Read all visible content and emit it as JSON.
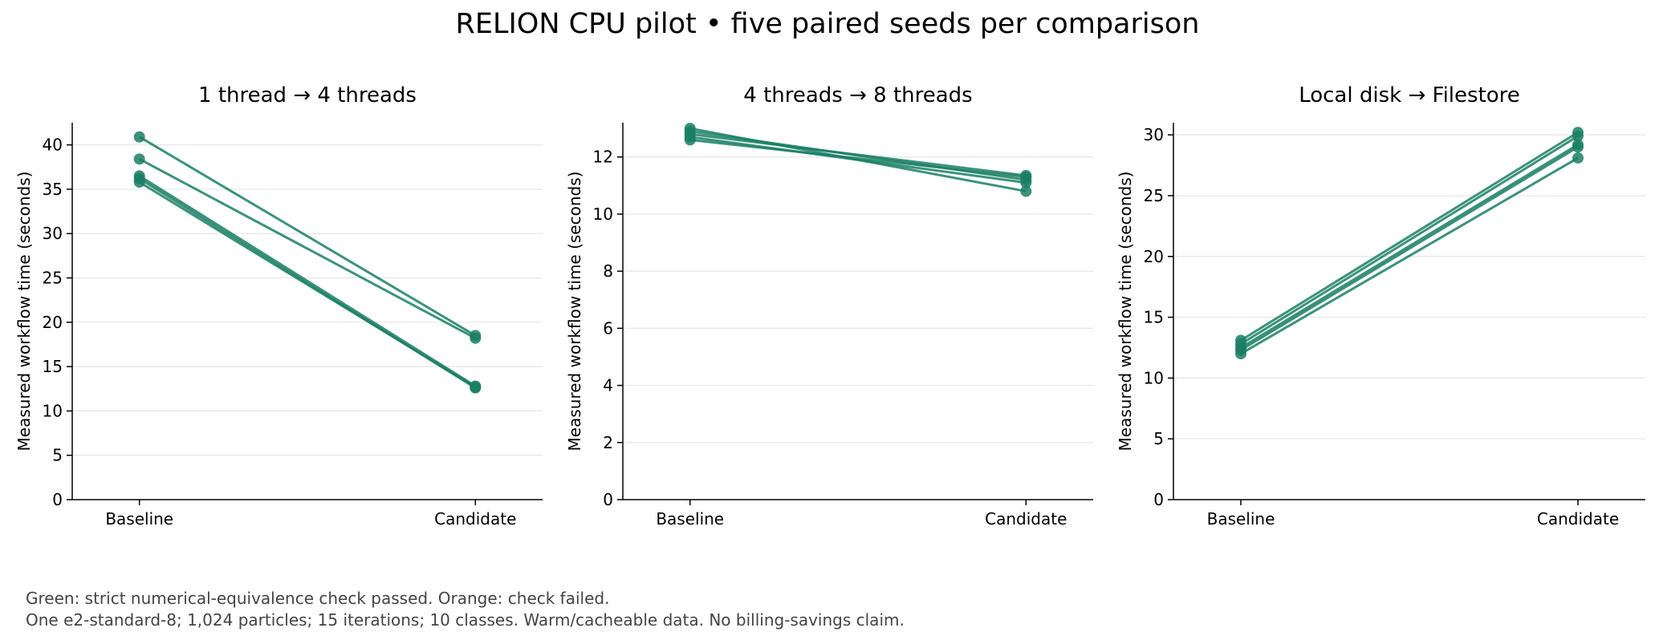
{
  "figure": {
    "title": "RELION CPU pilot • five paired seeds per comparison",
    "footnotes": [
      "Green: strict numerical-equivalence check passed. Orange: check failed.",
      "One e2-standard-8; 1,024 particles; 15 iterations; 10 classes. Warm/cacheable data. No billing-savings claim."
    ]
  },
  "colors": {
    "passed": "#1a7f64",
    "failed": "#e07b1a",
    "grid": "#e6e6e6",
    "axis": "#000000"
  },
  "chart_data": [
    {
      "type": "line",
      "title": "1 thread → 4 threads",
      "xlabel": "",
      "ylabel": "Measured workflow time (seconds)",
      "categories": [
        "Baseline",
        "Candidate"
      ],
      "ylim": [
        0,
        42.5
      ],
      "yticks": [
        0,
        5,
        10,
        15,
        20,
        25,
        30,
        35,
        40
      ],
      "grid": "horizontal",
      "series": [
        {
          "values": [
            40.9,
            18.5
          ],
          "check": "passed"
        },
        {
          "values": [
            38.4,
            18.2
          ],
          "check": "passed"
        },
        {
          "values": [
            36.5,
            12.8
          ],
          "check": "passed"
        },
        {
          "values": [
            36.2,
            12.6
          ],
          "check": "passed"
        },
        {
          "values": [
            35.8,
            12.7
          ],
          "check": "passed"
        }
      ]
    },
    {
      "type": "line",
      "title": "4 threads → 8 threads",
      "xlabel": "",
      "ylabel": "Measured workflow time (seconds)",
      "categories": [
        "Baseline",
        "Candidate"
      ],
      "ylim": [
        0,
        13.2
      ],
      "yticks": [
        0,
        2,
        4,
        6,
        8,
        10,
        12
      ],
      "grid": "horizontal",
      "series": [
        {
          "values": [
            13.0,
            10.8
          ],
          "check": "passed"
        },
        {
          "values": [
            12.9,
            11.2
          ],
          "check": "passed"
        },
        {
          "values": [
            12.8,
            11.35
          ],
          "check": "passed"
        },
        {
          "values": [
            12.7,
            11.1
          ],
          "check": "passed"
        },
        {
          "values": [
            12.6,
            11.3
          ],
          "check": "passed"
        }
      ]
    },
    {
      "type": "line",
      "title": "Local disk → Filestore",
      "xlabel": "",
      "ylabel": "Measured workflow time (seconds)",
      "categories": [
        "Baseline",
        "Candidate"
      ],
      "ylim": [
        0,
        31.0
      ],
      "yticks": [
        0,
        5,
        10,
        15,
        20,
        25,
        30
      ],
      "grid": "horizontal",
      "series": [
        {
          "values": [
            13.1,
            30.2
          ],
          "check": "passed"
        },
        {
          "values": [
            12.8,
            29.9
          ],
          "check": "passed"
        },
        {
          "values": [
            12.5,
            29.2
          ],
          "check": "passed"
        },
        {
          "values": [
            12.3,
            29.0
          ],
          "check": "passed"
        },
        {
          "values": [
            12.0,
            28.1
          ],
          "check": "passed"
        }
      ]
    }
  ]
}
